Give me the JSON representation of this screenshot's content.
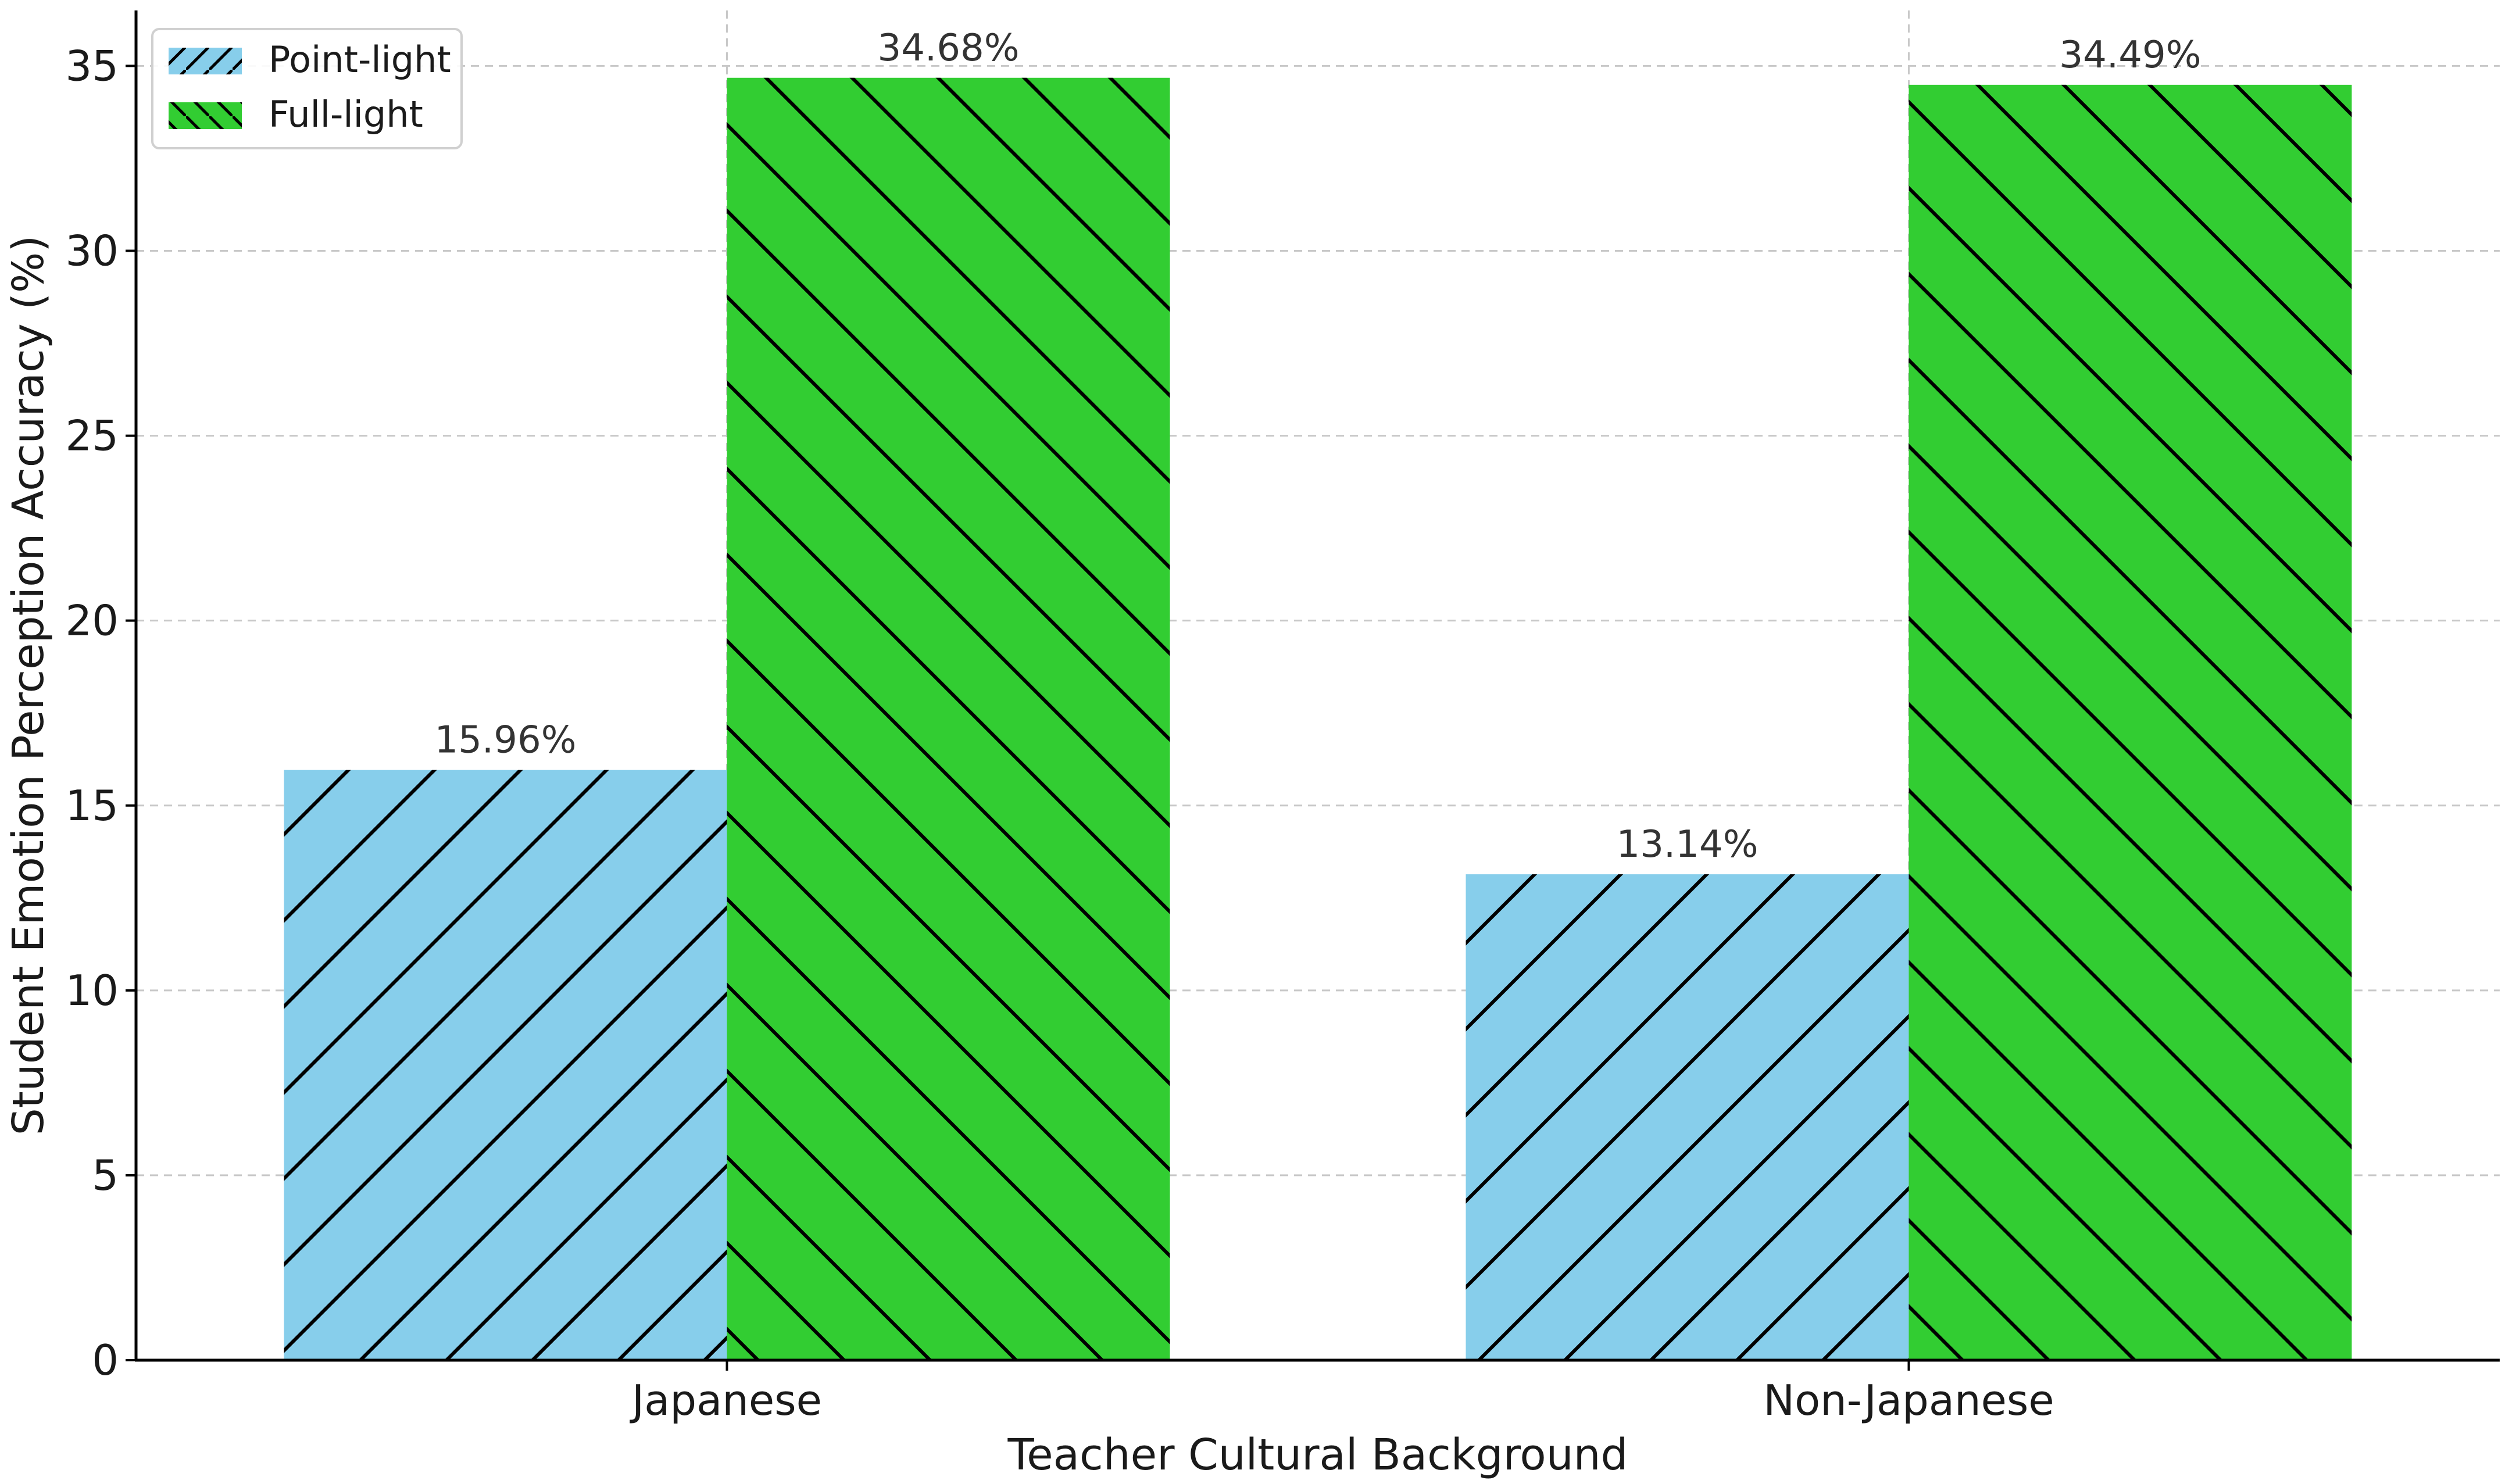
{
  "chart_data": {
    "type": "bar",
    "categories": [
      "Japanese",
      "Non-Japanese"
    ],
    "series": [
      {
        "name": "Point-light",
        "values": [
          15.96,
          13.14
        ],
        "color": "#87CEEB",
        "hatch": "forward-diagonal"
      },
      {
        "name": "Full-light",
        "values": [
          34.68,
          34.49
        ],
        "color": "#32CD32",
        "hatch": "back-diagonal"
      }
    ],
    "data_labels": [
      [
        "15.96%",
        "13.14%"
      ],
      [
        "34.68%",
        "34.49%"
      ]
    ],
    "xlabel": "Teacher Cultural Background",
    "ylabel": "Student Emotion Perception Accuracy (%)",
    "ylim": [
      0,
      36.5
    ],
    "yticks": [
      0,
      5,
      10,
      15,
      20,
      25,
      30,
      35
    ],
    "grid": true,
    "legend_position": "top-left"
  }
}
